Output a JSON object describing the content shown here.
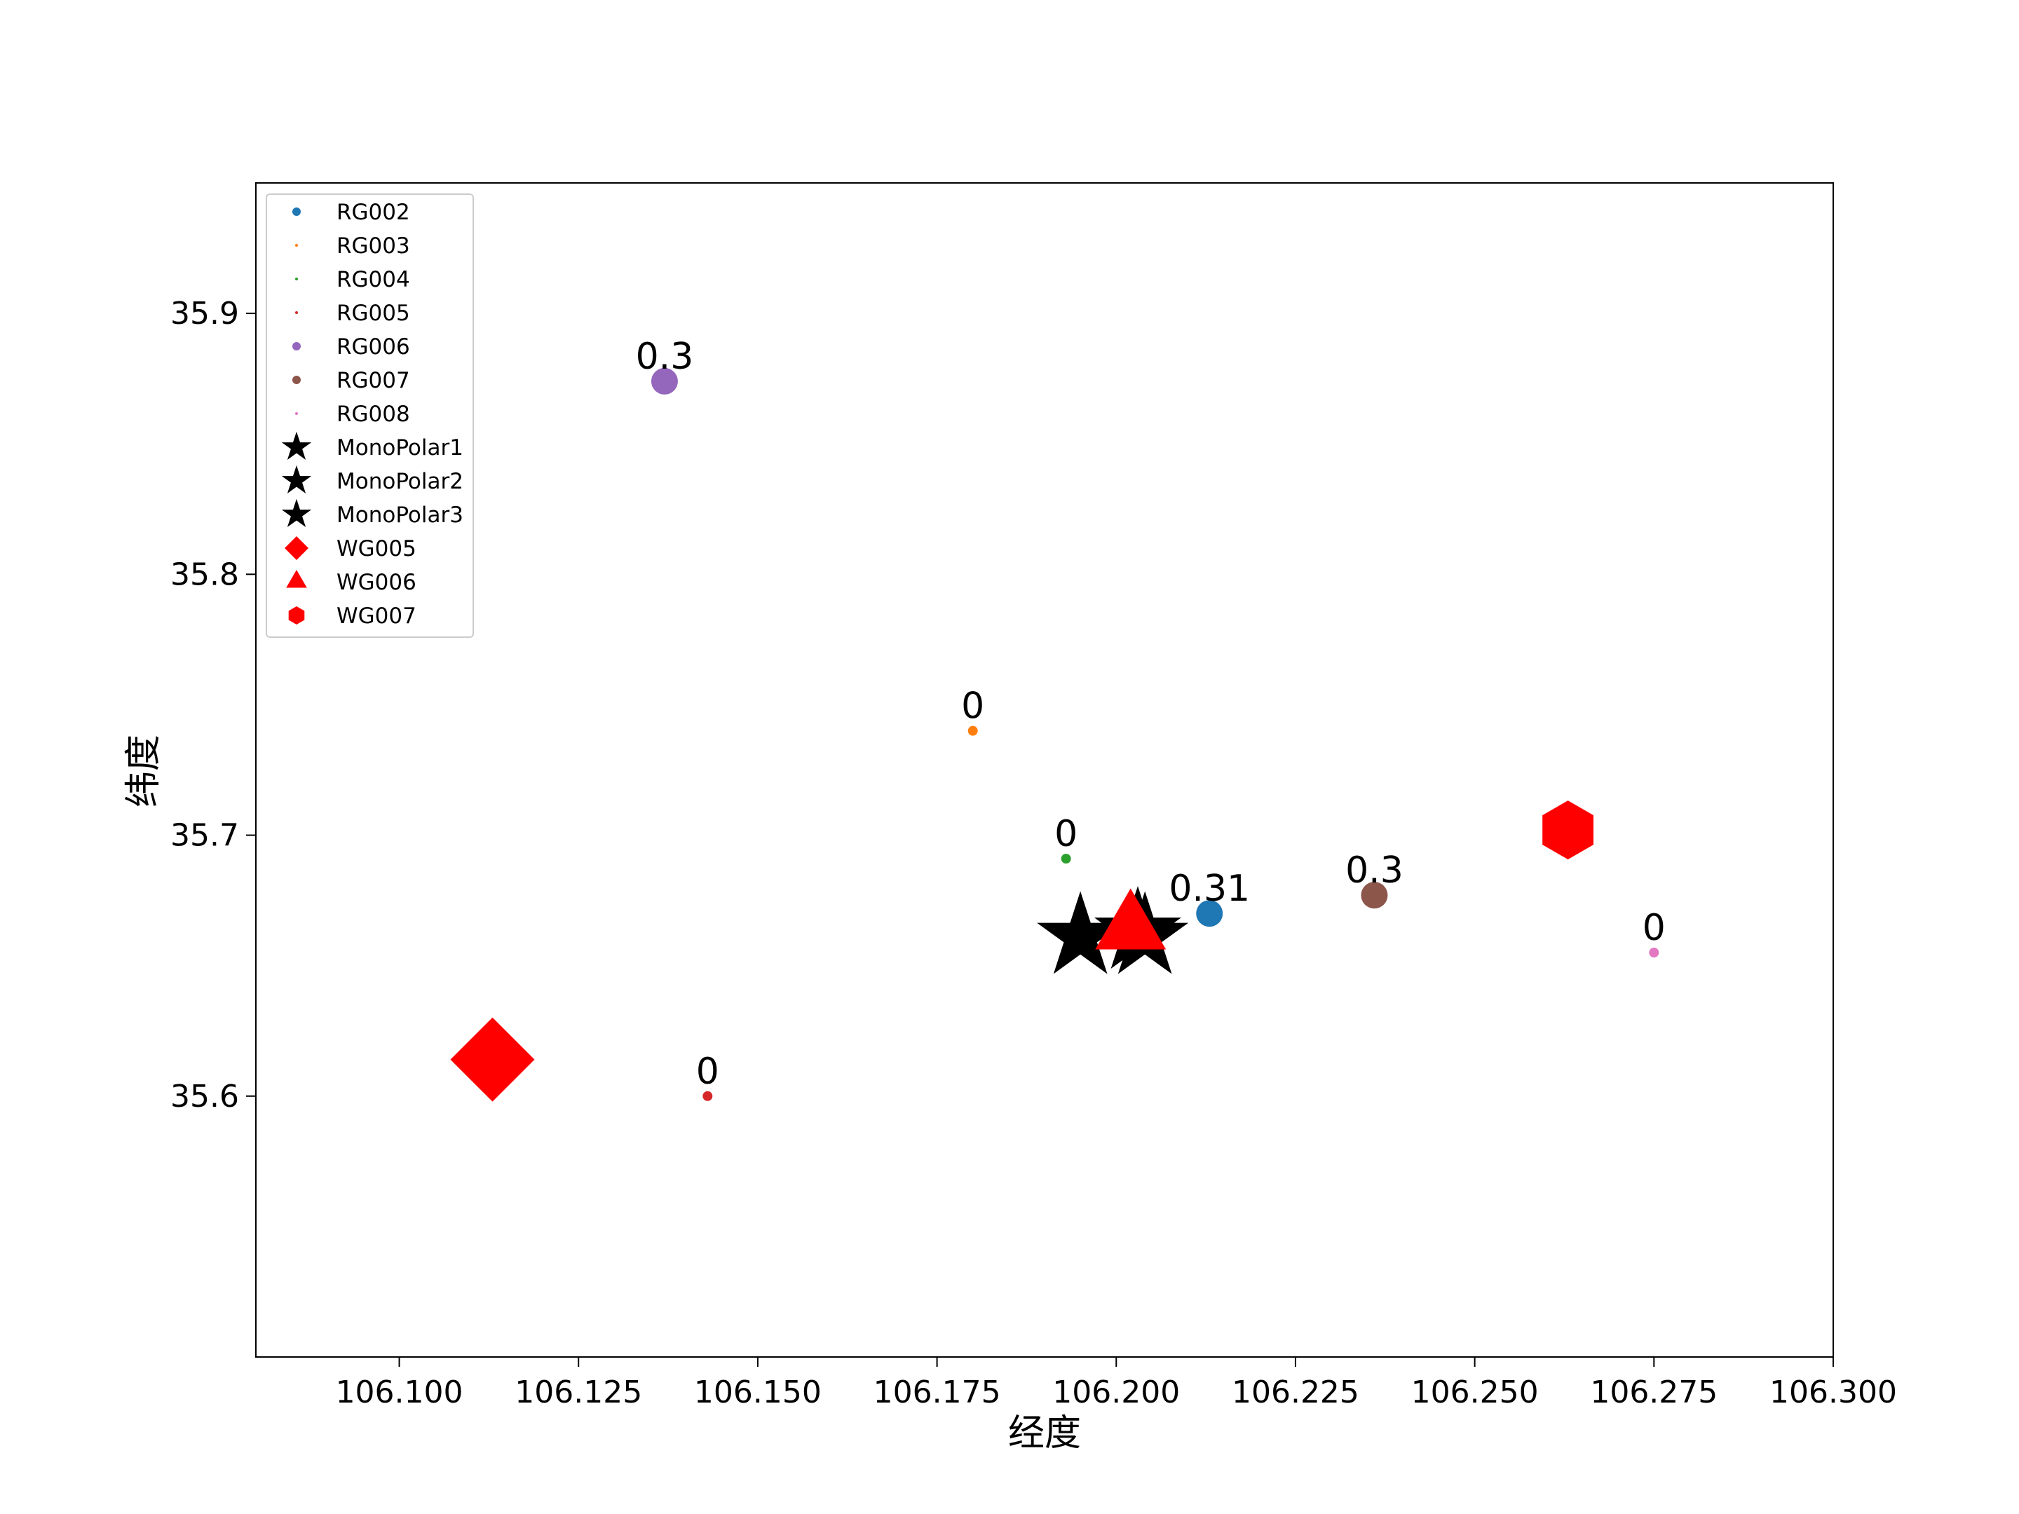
{
  "chart_data": {
    "type": "scatter",
    "title": "",
    "xlabel": "经度",
    "ylabel": "纬度",
    "xlim": [
      106.08,
      106.3
    ],
    "ylim": [
      35.5,
      35.95
    ],
    "xticks": [
      106.1,
      106.125,
      106.15,
      106.175,
      106.2,
      106.225,
      106.25,
      106.275,
      106.3
    ],
    "xtick_labels": [
      "106.100",
      "106.125",
      "106.150",
      "106.175",
      "106.200",
      "106.225",
      "106.250",
      "106.275",
      "106.300"
    ],
    "yticks": [
      35.6,
      35.7,
      35.8,
      35.9
    ],
    "ytick_labels": [
      "35.6",
      "35.7",
      "35.8",
      "35.9"
    ],
    "grid": false,
    "legend_position": "upper-left",
    "series": [
      {
        "name": "RG002",
        "marker": "circle",
        "color": "#1f77b4",
        "points": [
          {
            "x": 106.213,
            "y": 35.67,
            "label": "0.31"
          }
        ]
      },
      {
        "name": "RG003",
        "marker": "circle",
        "color": "#ff7f0e",
        "points": [
          {
            "x": 106.18,
            "y": 35.74,
            "label": "0"
          }
        ]
      },
      {
        "name": "RG004",
        "marker": "circle",
        "color": "#2ca02c",
        "points": [
          {
            "x": 106.193,
            "y": 35.691,
            "label": "0"
          }
        ]
      },
      {
        "name": "RG005",
        "marker": "circle",
        "color": "#d62728",
        "points": [
          {
            "x": 106.143,
            "y": 35.6,
            "label": "0"
          }
        ]
      },
      {
        "name": "RG006",
        "marker": "circle",
        "color": "#9467bd",
        "points": [
          {
            "x": 106.137,
            "y": 35.874,
            "label": "0.3"
          }
        ]
      },
      {
        "name": "RG007",
        "marker": "circle",
        "color": "#8c564b",
        "points": [
          {
            "x": 106.236,
            "y": 35.677,
            "label": "0.3"
          }
        ]
      },
      {
        "name": "RG008",
        "marker": "circle",
        "color": "#e377c2",
        "points": [
          {
            "x": 106.275,
            "y": 35.655,
            "label": "0"
          }
        ]
      },
      {
        "name": "MonoPolar1",
        "marker": "star",
        "color": "#000000",
        "points": [
          {
            "x": 106.195,
            "y": 35.661
          }
        ]
      },
      {
        "name": "MonoPolar2",
        "marker": "star",
        "color": "#000000",
        "points": [
          {
            "x": 106.204,
            "y": 35.661
          }
        ]
      },
      {
        "name": "MonoPolar3",
        "marker": "star",
        "color": "#000000",
        "points": [
          {
            "x": 106.203,
            "y": 35.663
          }
        ]
      },
      {
        "name": "WG005",
        "marker": "diamond",
        "color": "#ff0000",
        "points": [
          {
            "x": 106.113,
            "y": 35.614
          }
        ]
      },
      {
        "name": "WG006",
        "marker": "triangle",
        "color": "#ff0000",
        "points": [
          {
            "x": 106.202,
            "y": 35.664
          }
        ]
      },
      {
        "name": "WG007",
        "marker": "hexagon",
        "color": "#ff0000",
        "points": [
          {
            "x": 106.263,
            "y": 35.702
          }
        ]
      }
    ]
  }
}
